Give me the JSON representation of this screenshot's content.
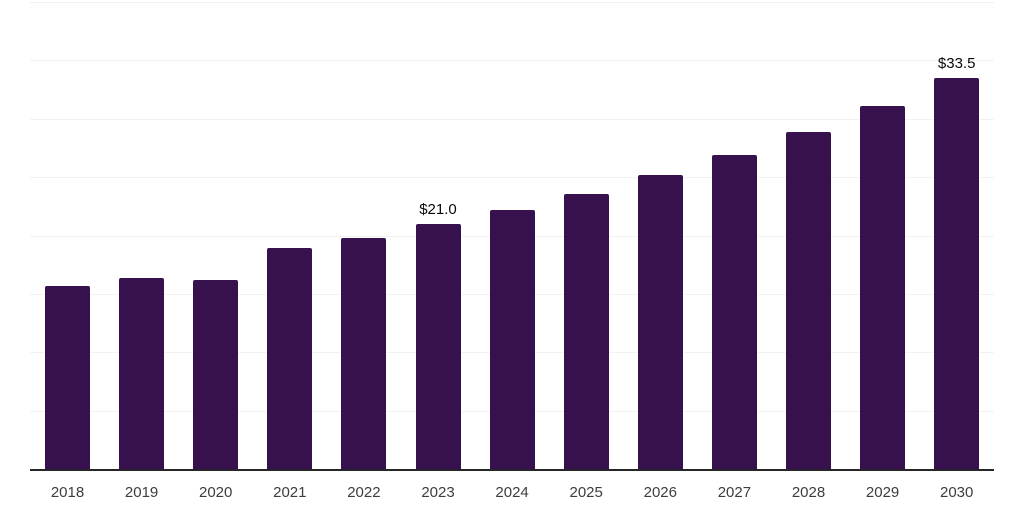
{
  "chart_data": {
    "type": "bar",
    "title": "",
    "xlabel": "",
    "ylabel": "",
    "categories": [
      "2018",
      "2019",
      "2020",
      "2021",
      "2022",
      "2023",
      "2024",
      "2025",
      "2026",
      "2027",
      "2028",
      "2029",
      "2030"
    ],
    "values": [
      15.7,
      16.4,
      16.2,
      18.9,
      19.8,
      21.0,
      22.2,
      23.6,
      25.2,
      26.9,
      28.9,
      31.1,
      33.5
    ],
    "data_labels": [
      {
        "category": "2023",
        "text": "$21.0"
      },
      {
        "category": "2030",
        "text": "$33.5"
      }
    ],
    "ylim": [
      0,
      40
    ],
    "gridline_step": 5,
    "grid": "horizontal-only",
    "legend": "none",
    "colors": {
      "bar": "#36114E",
      "axis_line": "#262626",
      "gridline": "#f2f2f2",
      "tick_label": "#3d3d3d",
      "value_label": "#0a0a0a",
      "background": "#ffffff"
    }
  }
}
